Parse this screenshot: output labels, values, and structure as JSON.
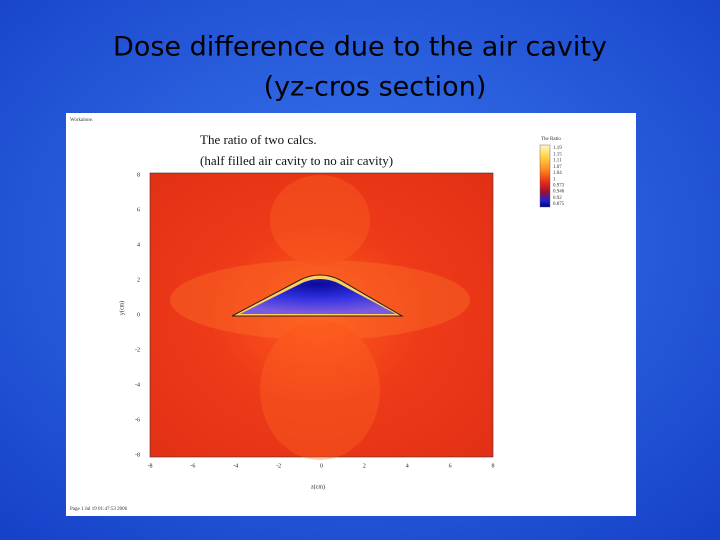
{
  "slide": {
    "title_lines": [
      "Dose difference due to the air cavity",
      "(yz-cros section)"
    ]
  },
  "figure": {
    "corner_label": "Workalone.",
    "title_lines": [
      "The ratio of two calcs.",
      "(half filled air cavity to no air cavity)"
    ],
    "x_label": "z(cm)",
    "y_label": "y(cm)",
    "x_ticks": [
      "-8",
      "-6",
      "-4",
      "-2",
      "0",
      "2",
      "4",
      "6",
      "8"
    ],
    "y_ticks": [
      "8",
      "6",
      "4",
      "2",
      "0",
      "-2",
      "-4",
      "-6",
      "-8"
    ],
    "legend_title": "The Ratio",
    "legend_labels": [
      "1.19",
      "1.15",
      "1.11",
      "1.07",
      "1.04",
      "1",
      "0.973",
      "0.946",
      "0.92",
      "0.875"
    ],
    "footer": "Page 1 Jul 19 01:47:53 2006"
  }
}
